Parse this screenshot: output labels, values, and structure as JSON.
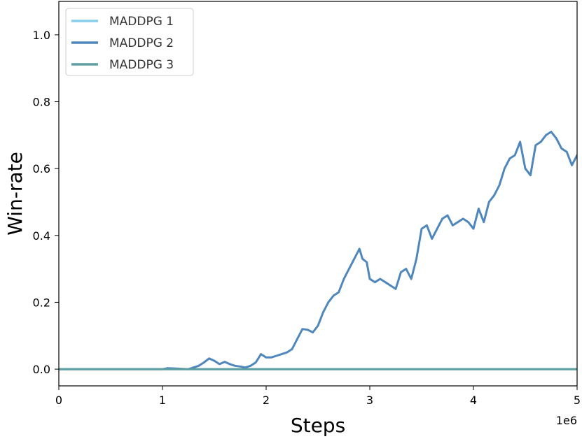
{
  "chart_data": {
    "type": "line",
    "xlabel": "Steps",
    "ylabel": "Win-rate",
    "x_offset_label": "1e6",
    "xlim": [
      0,
      5
    ],
    "ylim": [
      -0.05,
      1.1
    ],
    "xticks": [
      0,
      1,
      2,
      3,
      4,
      5
    ],
    "xtick_labels": [
      "0",
      "1",
      "2",
      "3",
      "4",
      "5"
    ],
    "yticks": [
      0.0,
      0.2,
      0.4,
      0.6,
      0.8,
      1.0
    ],
    "ytick_labels": [
      "0.0",
      "0.2",
      "0.4",
      "0.6",
      "0.8",
      "1.0"
    ],
    "grid": false,
    "legend_position": "top-left",
    "series": [
      {
        "name": "MADDPG 1",
        "color": "#87CEEB",
        "x": [
          0,
          5
        ],
        "y": [
          0.0,
          0.0
        ]
      },
      {
        "name": "MADDPG 2",
        "color": "#4F87BD",
        "x": [
          0,
          1.0,
          1.05,
          1.25,
          1.35,
          1.4,
          1.45,
          1.5,
          1.55,
          1.6,
          1.65,
          1.7,
          1.75,
          1.8,
          1.85,
          1.9,
          1.95,
          2.0,
          2.05,
          2.1,
          2.15,
          2.2,
          2.25,
          2.3,
          2.35,
          2.4,
          2.45,
          2.5,
          2.55,
          2.6,
          2.65,
          2.7,
          2.75,
          2.8,
          2.85,
          2.9,
          2.93,
          2.97,
          3.0,
          3.05,
          3.1,
          3.15,
          3.2,
          3.25,
          3.3,
          3.35,
          3.4,
          3.45,
          3.5,
          3.55,
          3.6,
          3.65,
          3.7,
          3.75,
          3.8,
          3.85,
          3.9,
          3.95,
          4.0,
          4.05,
          4.1,
          4.15,
          4.2,
          4.25,
          4.3,
          4.35,
          4.4,
          4.45,
          4.5,
          4.55,
          4.6,
          4.65,
          4.7,
          4.75,
          4.8,
          4.85,
          4.9,
          4.95,
          5.0
        ],
        "y": [
          0.0,
          0.0,
          0.003,
          0.0,
          0.01,
          0.02,
          0.032,
          0.025,
          0.015,
          0.022,
          0.015,
          0.01,
          0.008,
          0.005,
          0.01,
          0.02,
          0.045,
          0.035,
          0.035,
          0.04,
          0.045,
          0.05,
          0.06,
          0.09,
          0.12,
          0.118,
          0.11,
          0.13,
          0.17,
          0.2,
          0.22,
          0.23,
          0.27,
          0.3,
          0.33,
          0.36,
          0.33,
          0.32,
          0.27,
          0.26,
          0.27,
          0.26,
          0.25,
          0.24,
          0.29,
          0.3,
          0.27,
          0.33,
          0.42,
          0.43,
          0.39,
          0.42,
          0.45,
          0.46,
          0.43,
          0.44,
          0.45,
          0.44,
          0.42,
          0.48,
          0.44,
          0.5,
          0.52,
          0.55,
          0.6,
          0.63,
          0.64,
          0.68,
          0.6,
          0.58,
          0.67,
          0.68,
          0.7,
          0.71,
          0.69,
          0.66,
          0.65,
          0.61,
          0.64
        ]
      },
      {
        "name": "MADDPG 3",
        "color": "#5F9EA0",
        "x": [
          0,
          5
        ],
        "y": [
          0.0,
          0.0
        ]
      }
    ]
  }
}
